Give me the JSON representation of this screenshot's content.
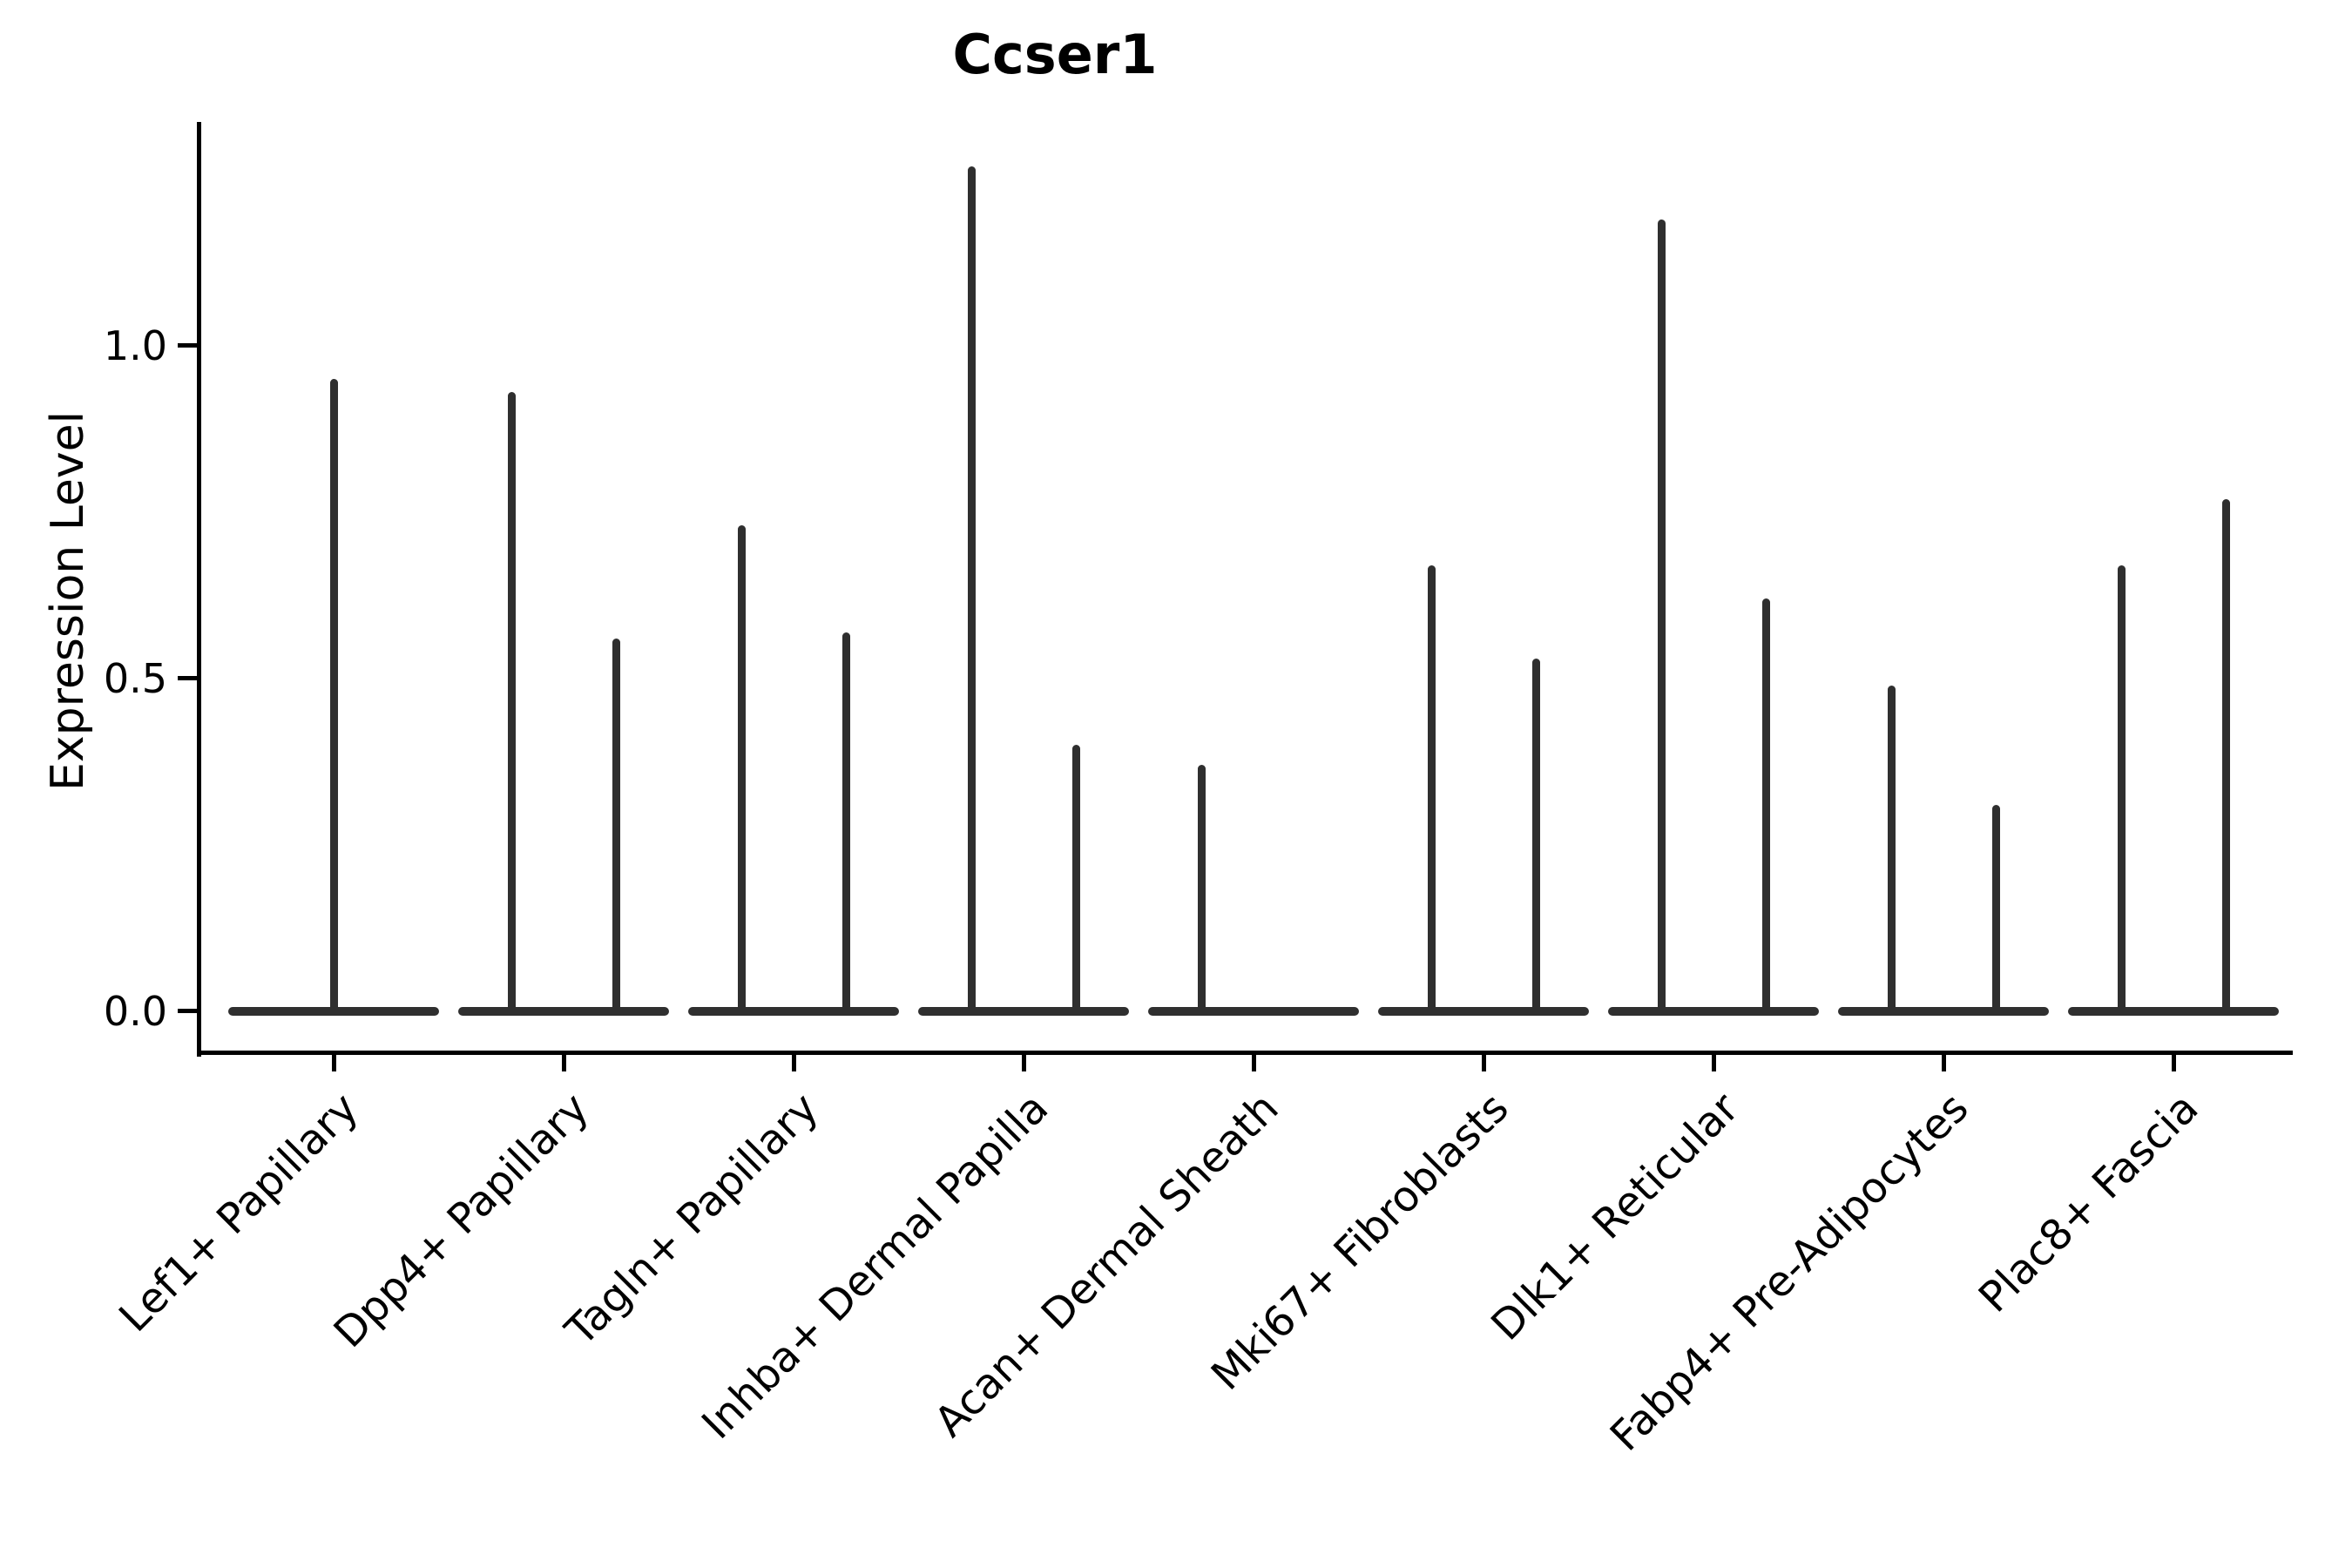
{
  "title": "Ccser1",
  "ylabel": "Expression Level",
  "chart_data": {
    "type": "violin",
    "title": "Ccser1",
    "xlabel": "",
    "ylabel": "Expression Level",
    "ylim": [
      -0.06,
      1.34
    ],
    "yticks": [
      0.0,
      0.5,
      1.0
    ],
    "ytick_labels": [
      "0.0",
      "0.5",
      "1.0"
    ],
    "grid": false,
    "legend": "none",
    "xtick_rotation": 45,
    "categories": [
      "Lef1+ Papillary",
      "Dpp4+ Papillary",
      "Tagln+ Papillary",
      "Inhba+ Dermal Papilla",
      "Acan+ Dermal Sheath",
      "Mki67+ Fibroblasts",
      "Dlk1+ Reticular",
      "Fabp4+ Pre-Adipocytes",
      "Plac8+ Fascia"
    ],
    "violins": [
      {
        "category": "Lef1+ Papillary",
        "spikes": [
          {
            "side": "center",
            "max": 0.95
          }
        ]
      },
      {
        "category": "Dpp4+ Papillary",
        "spikes": [
          {
            "side": "left",
            "max": 0.93
          },
          {
            "side": "right",
            "max": 0.56
          }
        ]
      },
      {
        "category": "Tagln+ Papillary",
        "spikes": [
          {
            "side": "left",
            "max": 0.73
          },
          {
            "side": "right",
            "max": 0.57
          }
        ]
      },
      {
        "category": "Inhba+ Dermal Papilla",
        "spikes": [
          {
            "side": "left",
            "max": 1.27
          },
          {
            "side": "right",
            "max": 0.4
          }
        ]
      },
      {
        "category": "Acan+ Dermal Sheath",
        "spikes": [
          {
            "side": "left",
            "max": 0.37
          }
        ]
      },
      {
        "category": "Mki67+ Fibroblasts",
        "spikes": [
          {
            "side": "left",
            "max": 0.67
          },
          {
            "side": "right",
            "max": 0.53
          }
        ]
      },
      {
        "category": "Dlk1+ Reticular",
        "spikes": [
          {
            "side": "left",
            "max": 1.19
          },
          {
            "side": "right",
            "max": 0.62
          }
        ]
      },
      {
        "category": "Fabp4+ Pre-Adipocytes",
        "spikes": [
          {
            "side": "left",
            "max": 0.49
          },
          {
            "side": "right",
            "max": 0.31
          }
        ]
      },
      {
        "category": "Plac8+ Fascia",
        "spikes": [
          {
            "side": "left",
            "max": 0.67
          },
          {
            "side": "right",
            "max": 0.77
          }
        ]
      }
    ],
    "colors": {
      "violin": "#2f2f2f",
      "axis": "#000000",
      "background": "#ffffff"
    }
  }
}
